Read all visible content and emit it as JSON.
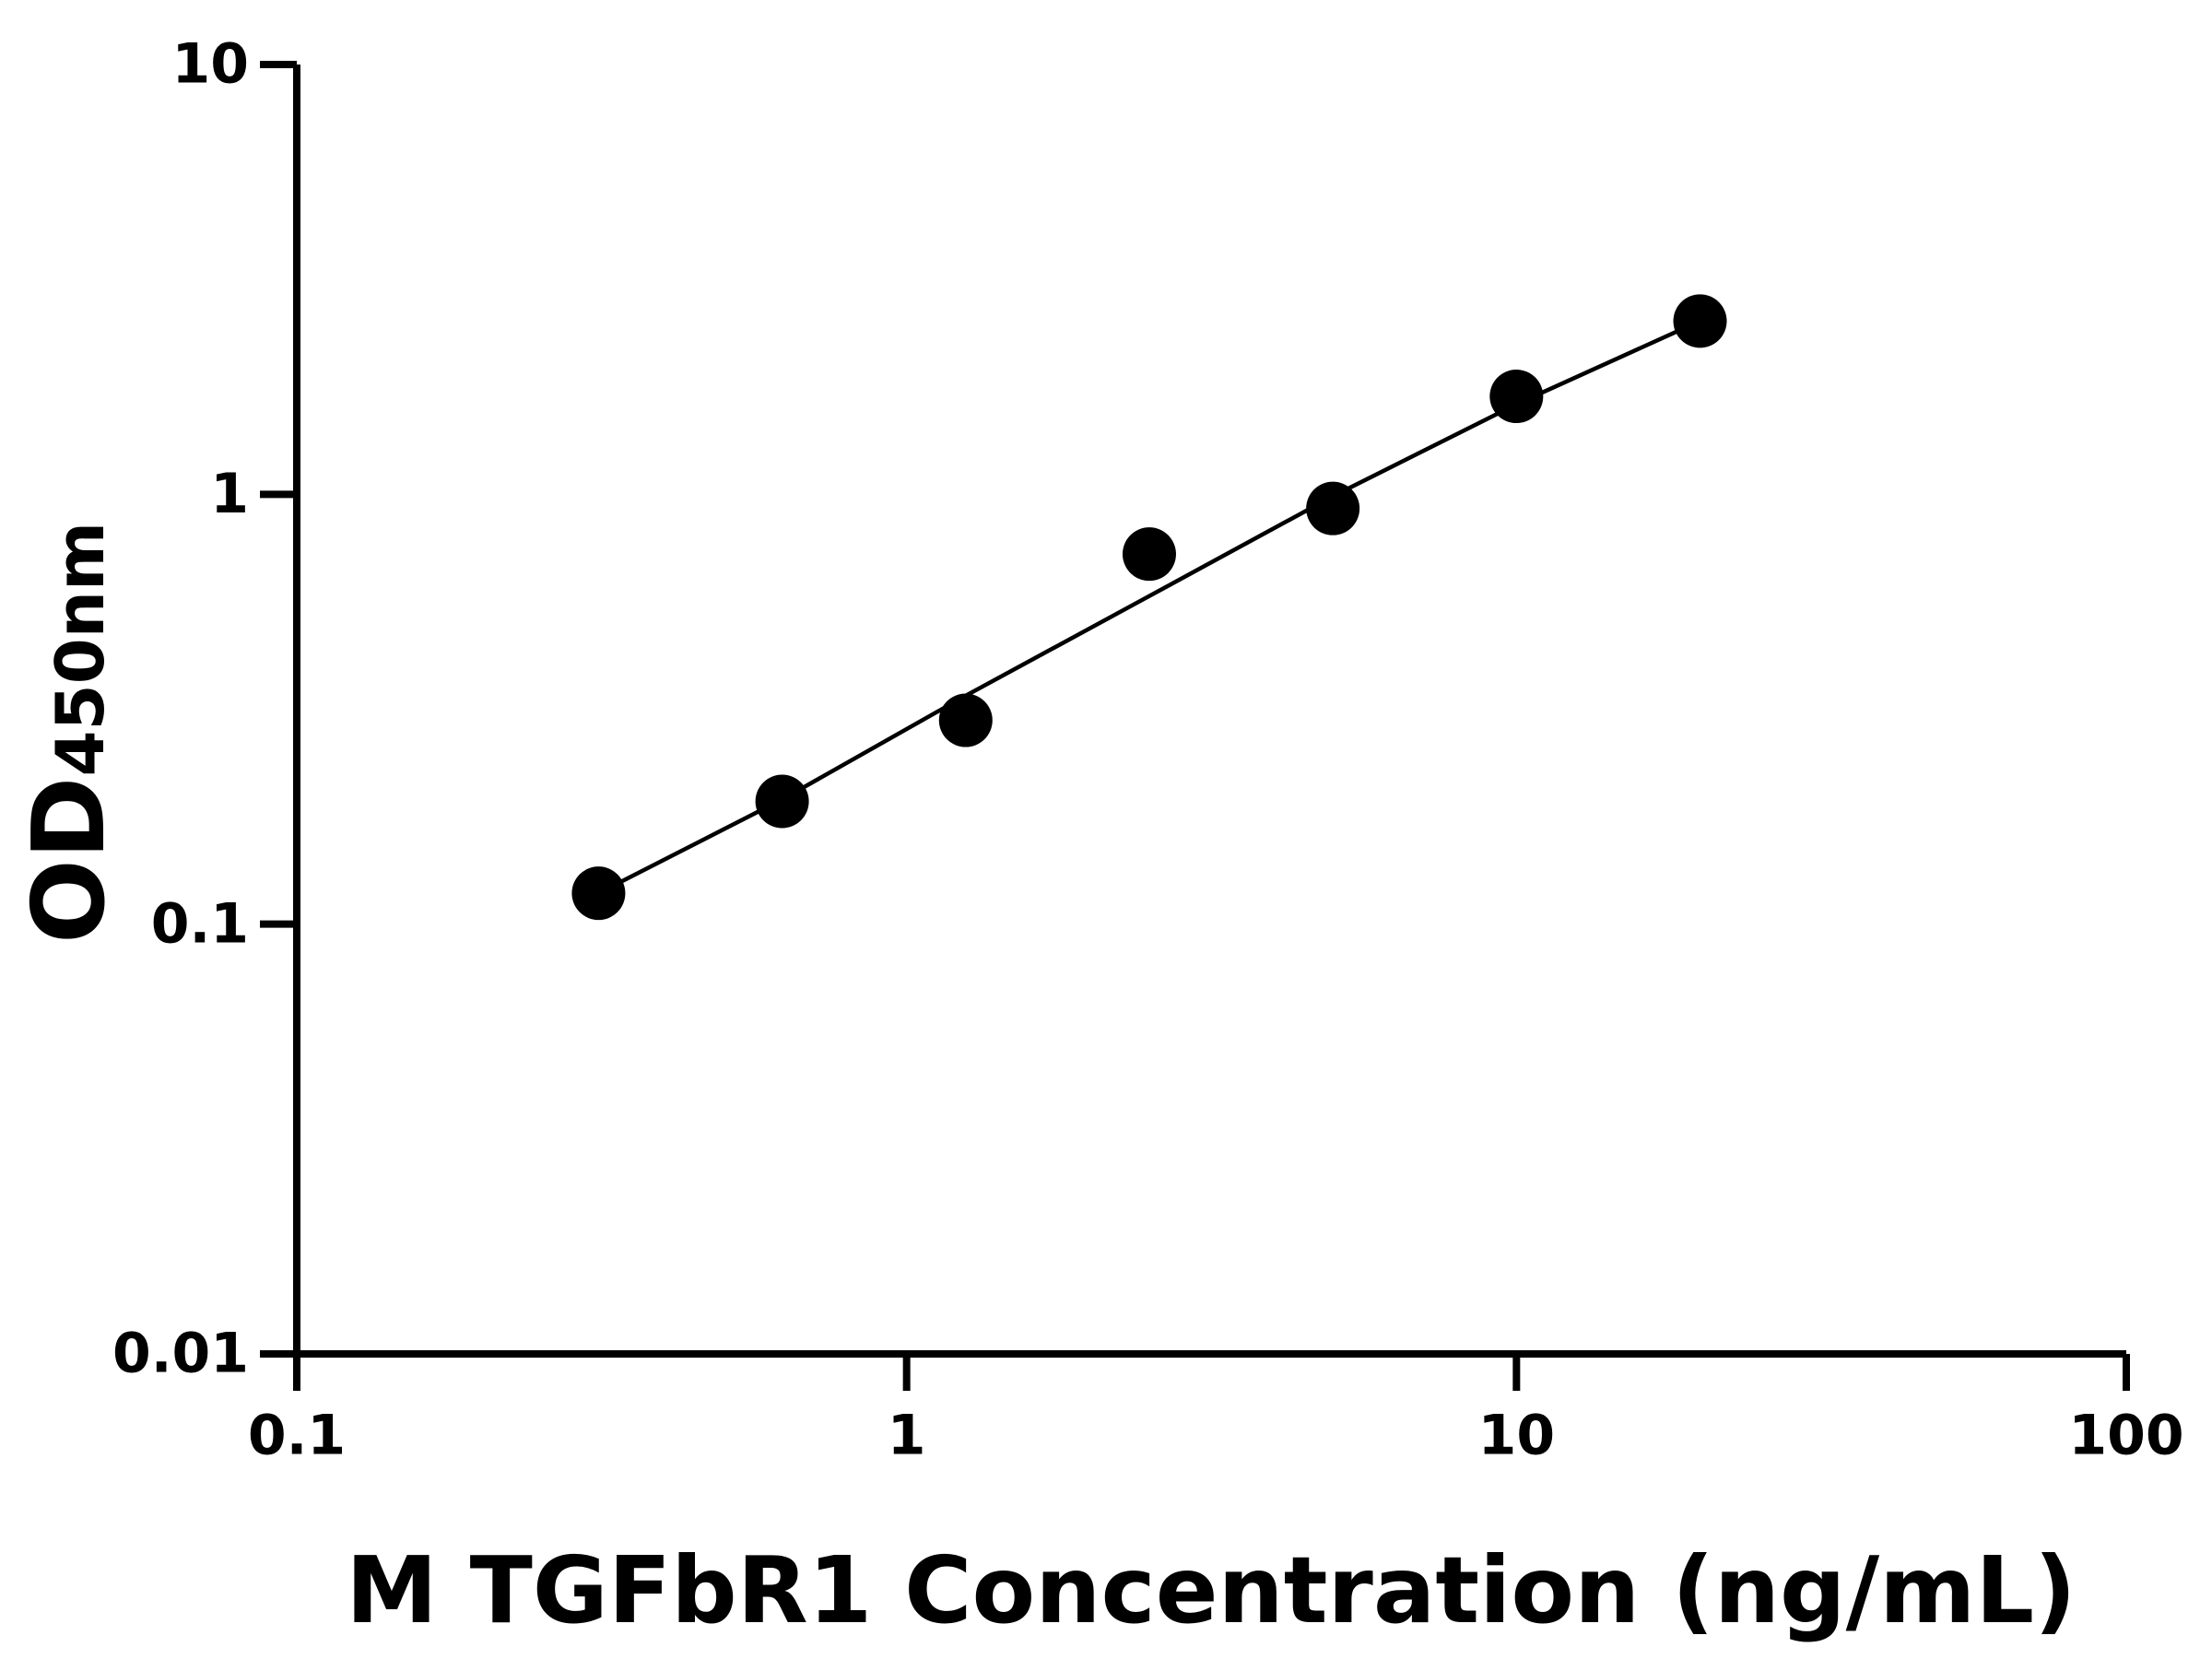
{
  "chart_data": {
    "type": "scatter",
    "x_label": "M TGFbR1 Concentration (ng/mL)",
    "y_label": "OD",
    "y_label_sub": "450nm",
    "xlog": true,
    "ylog": true,
    "xlim": [
      0.1,
      100
    ],
    "xticks": [
      0.1,
      1,
      10,
      100
    ],
    "ylim": [
      0.01,
      10
    ],
    "yticks": [
      0.01,
      0.1,
      1,
      10
    ],
    "series": [
      {
        "color": "#000000",
        "x": [
          0.3125,
          0.625,
          1.25,
          2.5,
          5,
          10,
          20
        ],
        "values": [
          0.118,
          0.193,
          0.298,
          0.726,
          0.927,
          1.69,
          2.53
        ]
      }
    ],
    "fit": {
      "color": "#000000",
      "x": [
        0.3125,
        0.625,
        1.25,
        2.5,
        5,
        10,
        20
      ],
      "values": [
        0.118,
        0.195,
        0.34,
        0.58,
        0.99,
        1.62,
        2.53
      ]
    }
  }
}
